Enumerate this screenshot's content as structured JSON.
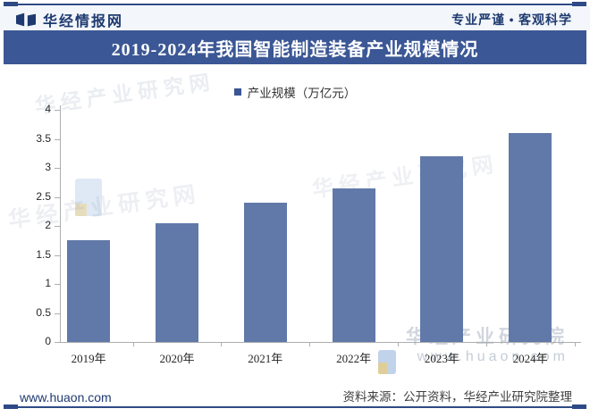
{
  "header": {
    "brand": "华经情报网",
    "slogan": "专业严谨 • 客观科学"
  },
  "title": "2019-2024年我国智能制造装备产业规模情况",
  "legend": {
    "label": "产业规模（万亿元）",
    "marker_color": "#3a5693"
  },
  "chart_data": {
    "type": "bar",
    "categories": [
      "2019年",
      "2020年",
      "2021年",
      "2022年",
      "2023年",
      "2024年"
    ],
    "values": [
      1.75,
      2.05,
      2.4,
      2.65,
      3.2,
      3.6
    ],
    "title": "2019-2024年我国智能制造装备产业规模情况",
    "xlabel": "",
    "ylabel": "产业规模（万亿元）",
    "ylim": [
      0,
      4
    ],
    "ytick_step": 0.5,
    "grid": false,
    "legend_position": "top",
    "bar_color": "#6179a9"
  },
  "watermarks": {
    "diag1": "华经产业研究网",
    "diag2": "华经产业研究网",
    "diag3": "华经产业研究网",
    "corner_name": "华经产业研究院",
    "corner_site": "www.huaon.com"
  },
  "footer": {
    "site": "www.huaon.com",
    "source": "资料来源：公开资料，华经产业研究院整理"
  },
  "colors": {
    "banner": "#3b5795",
    "navy": "#1e3a70",
    "rule": "#2e4a86",
    "bar": "#6179a9",
    "axis": "#aeaeae"
  }
}
